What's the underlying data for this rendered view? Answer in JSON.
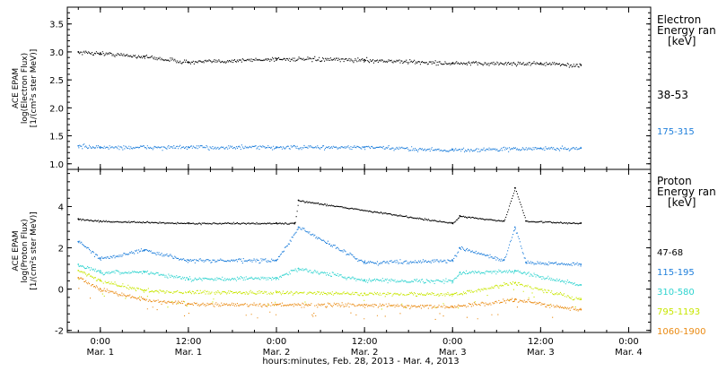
{
  "figure": {
    "xlabel": "hours:minutes, Feb. 28, 2013 - Mar.  4, 2013",
    "x_ticks": [
      {
        "time": "0:00",
        "date": "Mar. 1",
        "hour": 0
      },
      {
        "time": "12:00",
        "date": "Mar. 1",
        "hour": 12
      },
      {
        "time": "0:00",
        "date": "Mar. 2",
        "hour": 24
      },
      {
        "time": "12:00",
        "date": "Mar. 2",
        "hour": 36
      },
      {
        "time": "0:00",
        "date": "Mar. 3",
        "hour": 48
      },
      {
        "time": "12:00",
        "date": "Mar. 3",
        "hour": 60
      },
      {
        "time": "0:00",
        "date": "Mar. 4",
        "hour": 72
      }
    ],
    "x_range_hours": [
      -4.5,
      75
    ],
    "data_range_hours": [
      -3,
      65.5
    ]
  },
  "chart_data": [
    {
      "type": "scatter",
      "panel": "electron",
      "ylabel": [
        "ACE EPAM",
        "log(Electron Flux)",
        "[1/(cm²s ster MeV)]"
      ],
      "ylim": [
        0.9,
        3.8
      ],
      "y_ticks": [
        "1.0",
        "1.5",
        "2.0",
        "2.5",
        "3.0",
        "3.5"
      ],
      "legend_title": [
        "Electron",
        "Energy ran",
        "[keV]"
      ],
      "series": [
        {
          "name": "38-53",
          "color": "#000000",
          "x": [
            -3,
            0,
            6,
            12,
            24,
            36,
            48,
            60,
            65.5
          ],
          "y": [
            3.0,
            2.98,
            2.92,
            2.82,
            2.88,
            2.86,
            2.8,
            2.8,
            2.76
          ]
        },
        {
          "name": "175-315",
          "color": "#1f7fdb",
          "x": [
            -3,
            0,
            12,
            24,
            36,
            48,
            60,
            65.5
          ],
          "y": [
            1.32,
            1.3,
            1.3,
            1.3,
            1.3,
            1.25,
            1.28,
            1.28
          ]
        }
      ]
    },
    {
      "type": "scatter",
      "panel": "proton",
      "ylabel": [
        "ACE EPAM",
        "log(Proton Flux)",
        "[1/(cm²s ster MeV)]"
      ],
      "ylim": [
        -2.1,
        5.8
      ],
      "y_ticks": [
        "-2",
        "0",
        "2",
        "4"
      ],
      "legend_title": [
        "Proton",
        "Energy ran",
        "[keV]"
      ],
      "series": [
        {
          "name": "47-68",
          "color": "#000000",
          "x": [
            -3,
            0,
            12,
            24,
            26.5,
            27,
            48,
            49,
            55,
            56.5,
            58,
            65.5
          ],
          "y": [
            3.4,
            3.3,
            3.2,
            3.2,
            3.2,
            4.3,
            3.2,
            3.55,
            3.3,
            4.9,
            3.3,
            3.2
          ]
        },
        {
          "name": "115-195",
          "color": "#1f7fdb",
          "x": [
            -3,
            0,
            6,
            12,
            24,
            27,
            36,
            48,
            49,
            55,
            56.5,
            58,
            65.5
          ],
          "y": [
            2.3,
            1.5,
            1.9,
            1.4,
            1.4,
            3.0,
            1.3,
            1.4,
            2.0,
            1.4,
            3.0,
            1.3,
            1.2
          ]
        },
        {
          "name": "310-580",
          "color": "#2ed3cf",
          "x": [
            -3,
            0,
            6,
            12,
            24,
            27,
            36,
            48,
            49,
            56.5,
            65.5
          ],
          "y": [
            1.2,
            0.8,
            0.85,
            0.5,
            0.55,
            1.0,
            0.45,
            0.4,
            0.8,
            0.9,
            0.2
          ]
        },
        {
          "name": "795-1193",
          "color": "#c8e600",
          "x": [
            -3,
            0,
            6,
            12,
            24,
            36,
            48,
            56.5,
            65.5
          ],
          "y": [
            0.9,
            0.4,
            -0.05,
            -0.15,
            -0.15,
            -0.2,
            -0.25,
            0.3,
            -0.5
          ]
        },
        {
          "name": "1060-1900",
          "color": "#ea8a12",
          "x": [
            -3,
            0,
            6,
            12,
            24,
            36,
            48,
            56.5,
            65.5
          ],
          "y": [
            0.55,
            0.0,
            -0.5,
            -0.7,
            -0.75,
            -0.75,
            -0.85,
            -0.5,
            -1.0
          ]
        }
      ]
    }
  ]
}
